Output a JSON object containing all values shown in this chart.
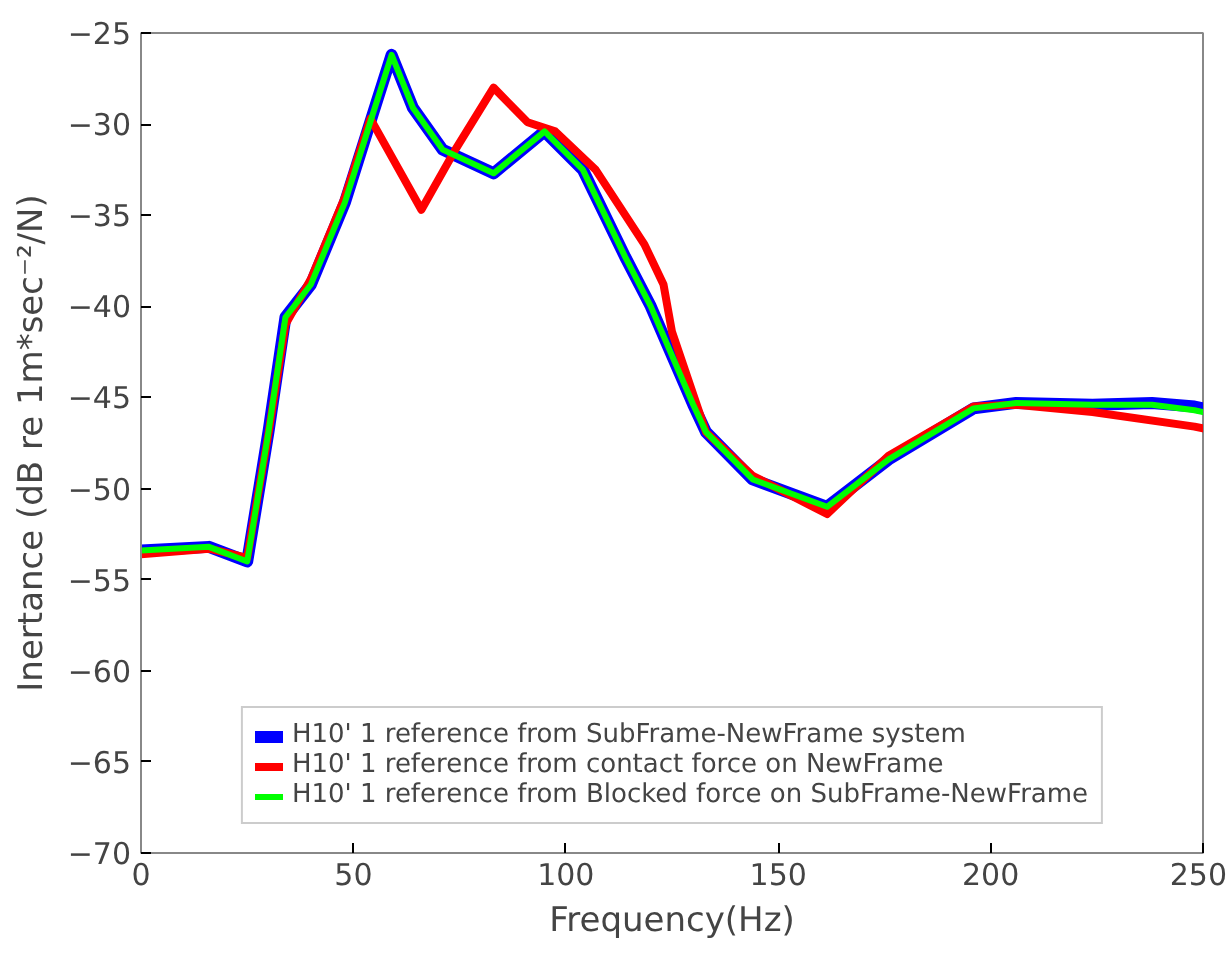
{
  "chart_data": {
    "type": "line",
    "xlabel": "Frequency(Hz)",
    "ylabel": "Inertance (dB re 1m*sec⁻²/N)",
    "xlim": [
      0,
      250
    ],
    "xticks": [
      0,
      50,
      100,
      150,
      200,
      250
    ],
    "ylim": [
      -70,
      -25
    ],
    "yticks": [
      -70,
      -65,
      -60,
      -55,
      -50,
      -45,
      -40,
      -35,
      -30,
      -25
    ],
    "grid": false,
    "legend": "bottom",
    "line_style": "solid",
    "marker": "none",
    "series": [
      {
        "name": "H10' 1 reference from SubFrame-NewFrame system",
        "color": "#0000ff",
        "x": [
          0,
          16,
          25,
          30,
          34,
          40,
          48,
          54.5,
          59,
          64,
          71,
          83,
          95,
          104,
          114,
          120,
          130,
          133,
          144,
          161.5,
          176,
          196,
          206,
          224,
          238,
          248,
          250
        ],
        "values": [
          -53.4,
          -53.2,
          -54.0,
          -46.9,
          -40.6,
          -38.8,
          -34.3,
          -29.5,
          -26.2,
          -29.1,
          -31.4,
          -32.7,
          -30.4,
          -32.5,
          -37.3,
          -40.0,
          -45.4,
          -46.9,
          -49.5,
          -51.0,
          -48.4,
          -45.6,
          -45.3,
          -45.4,
          -45.3,
          -45.5,
          -45.6
        ]
      },
      {
        "name": "H10' 1 reference from contact force on NewFrame",
        "color": "#ff0000",
        "x": [
          0,
          16,
          25,
          30,
          34,
          40,
          48,
          54,
          66,
          74,
          83,
          91,
          97.5,
          107,
          118.5,
          123,
          125,
          133,
          144,
          161.5,
          176,
          196,
          206,
          224,
          248,
          250
        ],
        "values": [
          -53.6,
          -53.3,
          -53.8,
          -47.0,
          -41.0,
          -38.5,
          -34.0,
          -29.7,
          -34.7,
          -31.4,
          -28.0,
          -29.9,
          -30.4,
          -32.5,
          -36.6,
          -38.8,
          -41.4,
          -46.9,
          -49.3,
          -51.4,
          -48.2,
          -45.5,
          -45.4,
          -45.8,
          -46.6,
          -46.7
        ]
      },
      {
        "name": "H10' 1 reference from Blocked force on SubFrame-NewFrame",
        "color": "#00ff00",
        "x": [
          0,
          16,
          25,
          30,
          34,
          40,
          48,
          54.5,
          59,
          64,
          71,
          83,
          95,
          104,
          114,
          120,
          130,
          133,
          144,
          161.5,
          176,
          196,
          206,
          224,
          238,
          248,
          250
        ],
        "values": [
          -53.4,
          -53.2,
          -54.0,
          -46.9,
          -40.6,
          -38.8,
          -34.3,
          -29.5,
          -26.2,
          -29.1,
          -31.4,
          -32.7,
          -30.4,
          -32.5,
          -37.3,
          -40.0,
          -45.4,
          -46.9,
          -49.5,
          -51.0,
          -48.4,
          -45.6,
          -45.3,
          -45.4,
          -45.4,
          -45.7,
          -45.8
        ]
      }
    ]
  }
}
